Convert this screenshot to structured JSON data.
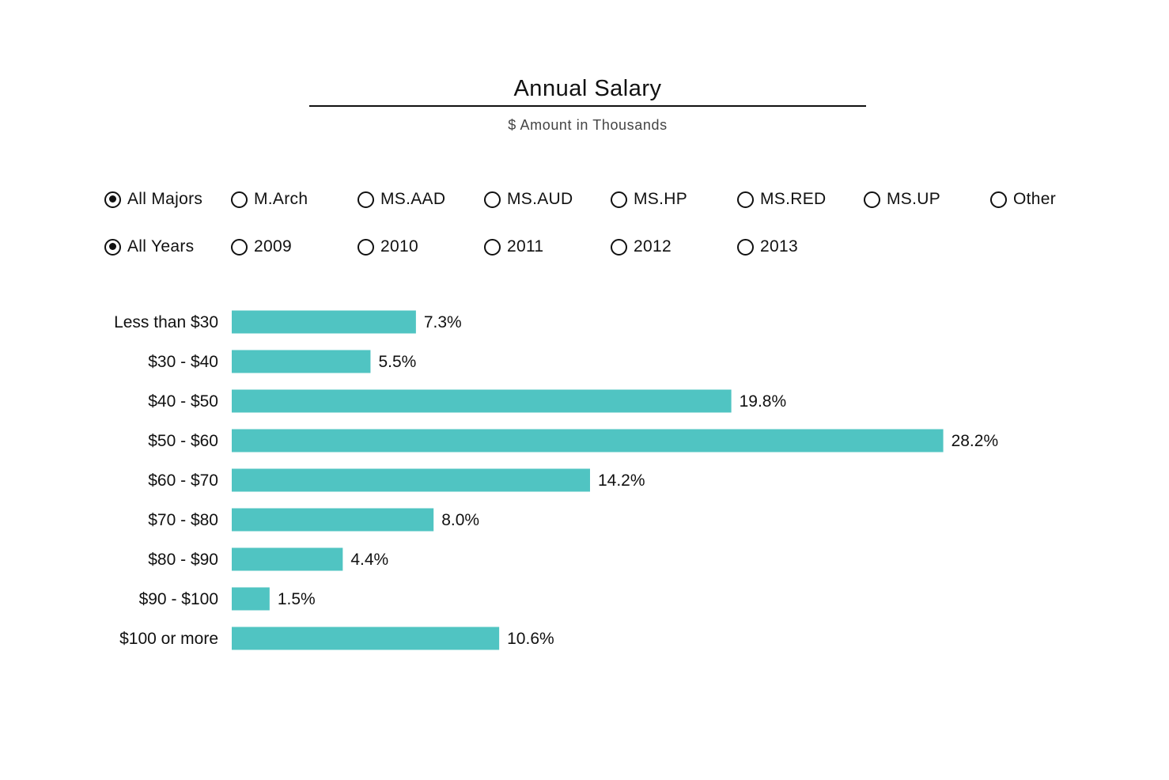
{
  "header": {
    "title": "Annual Salary",
    "subtitle": "$ Amount in Thousands"
  },
  "filters": {
    "majors": [
      {
        "label": "All Majors",
        "checked": true
      },
      {
        "label": "M.Arch",
        "checked": false
      },
      {
        "label": "MS.AAD",
        "checked": false
      },
      {
        "label": "MS.AUD",
        "checked": false
      },
      {
        "label": "MS.HP",
        "checked": false
      },
      {
        "label": "MS.RED",
        "checked": false
      },
      {
        "label": "MS.UP",
        "checked": false
      },
      {
        "label": "Other",
        "checked": false
      }
    ],
    "years": [
      {
        "label": "All Years",
        "checked": true
      },
      {
        "label": "2009",
        "checked": false
      },
      {
        "label": "2010",
        "checked": false
      },
      {
        "label": "2011",
        "checked": false
      },
      {
        "label": "2012",
        "checked": false
      },
      {
        "label": "2013",
        "checked": false
      }
    ]
  },
  "chart_data": {
    "type": "bar",
    "orientation": "horizontal",
    "categories": [
      "Less than $30",
      "$30 - $40",
      "$40 - $50",
      "$50 - $60",
      "$60 - $70",
      "$70 - $80",
      "$80 - $90",
      "$90 - $100",
      "$100 or more"
    ],
    "values": [
      7.3,
      5.5,
      19.8,
      28.2,
      14.2,
      8.0,
      4.4,
      1.5,
      10.6
    ],
    "value_labels": [
      "7.3%",
      "5.5%",
      "19.8%",
      "28.2%",
      "14.2%",
      "8.0%",
      "4.4%",
      "1.5%",
      "10.6%"
    ],
    "value_unit": "%",
    "bar_color": "#50c4c2",
    "grid": false,
    "legend": "none"
  }
}
